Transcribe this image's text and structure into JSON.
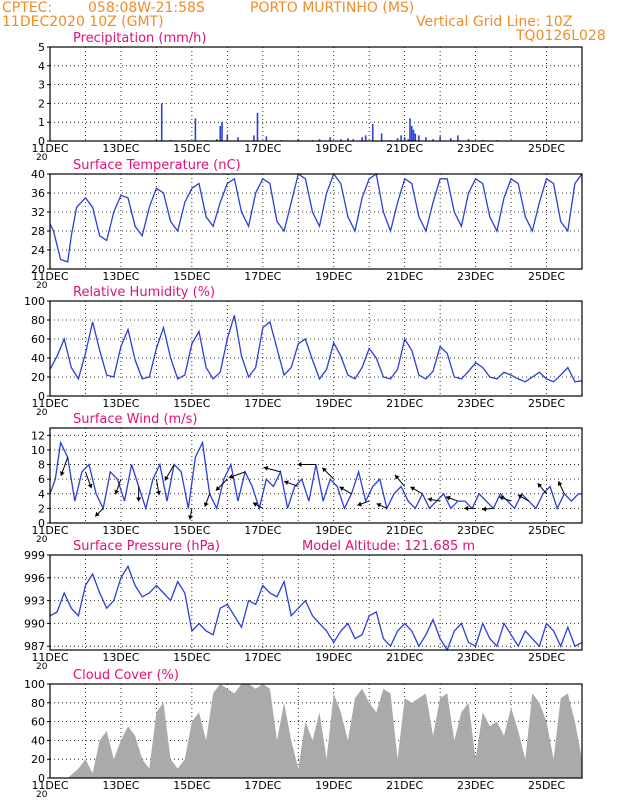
{
  "header": {
    "line1_left": "CPTEC:",
    "line1_coords": "058:08W-21:58S",
    "line1_station": "PORTO MURTINHO (MS)",
    "line2_left": "11DEC2020 10Z (GMT)",
    "line2_right": "Vertical Grid Line: 10Z",
    "line3_right": "TQ0126L028"
  },
  "colors": {
    "header": "#f08c28",
    "panel_title": "#e0107a",
    "line": "#2b3fd9",
    "cloud": "#aaaaaa",
    "wind_arrow": "#000000"
  },
  "x_axis": {
    "tick_labels": [
      "11DEC",
      "13DEC",
      "15DEC",
      "17DEC",
      "19DEC",
      "21DEC",
      "23DEC",
      "25DEC"
    ],
    "start_day": 11,
    "end_day": 26,
    "cut_label": "20"
  },
  "chart_data": [
    {
      "id": "precip",
      "type": "bar",
      "title": "Precipitation (mm/h)",
      "ylim": [
        0,
        5
      ],
      "yticks": [
        0,
        1,
        2,
        3,
        4,
        5
      ],
      "x": [
        12.2,
        12.6,
        13.0,
        13.3,
        13.8,
        14.0,
        14.15,
        14.4,
        14.9,
        15.1,
        15.4,
        15.7,
        15.8,
        15.85,
        16.0,
        16.3,
        16.75,
        16.85,
        17.1,
        17.5,
        18.0,
        18.4,
        18.6,
        18.9,
        19.2,
        19.4,
        19.55,
        19.8,
        19.9,
        20.1,
        20.35,
        20.6,
        20.8,
        20.9,
        21.0,
        21.1,
        21.15,
        21.2,
        21.25,
        21.3,
        21.4,
        21.6,
        21.8,
        22.0,
        22.3,
        22.5,
        22.8,
        23.2,
        23.6,
        24.0,
        24.6,
        25.2,
        25.6
      ],
      "values": [
        0.02,
        0.03,
        0.02,
        0.04,
        0.03,
        0.05,
        2.0,
        0.06,
        0.05,
        1.2,
        0.05,
        0.1,
        0.8,
        1.0,
        0.35,
        0.2,
        0.3,
        1.5,
        0.25,
        0.05,
        0.1,
        0.05,
        0.1,
        0.2,
        0.1,
        0.15,
        0.1,
        0.2,
        0.3,
        0.9,
        0.4,
        0.05,
        0.15,
        0.3,
        0.2,
        0.1,
        1.2,
        0.8,
        0.6,
        0.4,
        0.3,
        0.2,
        0.1,
        0.25,
        0.15,
        0.3,
        0.1,
        0.05,
        0.05,
        0.03,
        0.02,
        0.02,
        0.02
      ]
    },
    {
      "id": "temp",
      "type": "line",
      "title": "Surface Temperature (nC)",
      "ylim": [
        20,
        40
      ],
      "yticks": [
        20,
        24,
        28,
        32,
        36,
        40
      ],
      "x": [
        11.0,
        11.1,
        11.3,
        11.5,
        11.6,
        11.75,
        12.0,
        12.2,
        12.4,
        12.6,
        12.8,
        13.0,
        13.2,
        13.4,
        13.6,
        13.8,
        14.0,
        14.2,
        14.4,
        14.6,
        14.8,
        15.0,
        15.2,
        15.4,
        15.6,
        15.8,
        16.0,
        16.2,
        16.4,
        16.6,
        16.8,
        17.0,
        17.2,
        17.4,
        17.6,
        17.8,
        18.0,
        18.2,
        18.4,
        18.6,
        18.8,
        19.0,
        19.2,
        19.4,
        19.6,
        19.8,
        20.0,
        20.2,
        20.4,
        20.6,
        20.8,
        21.0,
        21.2,
        21.4,
        21.6,
        21.8,
        22.0,
        22.2,
        22.4,
        22.6,
        22.8,
        23.0,
        23.2,
        23.4,
        23.6,
        23.8,
        24.0,
        24.2,
        24.4,
        24.6,
        24.8,
        25.0,
        25.2,
        25.4,
        25.6,
        25.8,
        26.0
      ],
      "values": [
        29.5,
        28,
        22,
        21.5,
        27,
        33,
        35,
        33,
        27,
        26,
        32,
        35.5,
        35,
        29,
        27,
        33,
        37,
        36,
        30,
        28,
        34,
        37,
        38,
        31,
        29,
        34,
        38,
        39,
        32,
        29,
        36,
        39,
        38,
        30,
        28,
        34,
        40,
        39,
        32,
        29,
        36,
        40,
        38,
        31,
        28,
        35,
        39,
        40,
        32,
        28,
        34,
        39,
        38,
        31,
        28,
        34,
        39,
        39,
        32,
        29,
        36,
        39,
        38,
        31,
        28,
        35,
        39,
        38,
        31,
        28,
        34,
        39,
        38,
        30,
        28,
        38,
        40
      ]
    },
    {
      "id": "rh",
      "type": "line",
      "title": "Relative Humidity (%)",
      "ylim": [
        0,
        100
      ],
      "yticks": [
        0,
        20,
        40,
        60,
        80,
        100
      ],
      "x": [
        11.0,
        11.2,
        11.4,
        11.6,
        11.8,
        12.0,
        12.2,
        12.4,
        12.6,
        12.8,
        13.0,
        13.2,
        13.4,
        13.6,
        13.8,
        14.0,
        14.2,
        14.4,
        14.6,
        14.8,
        15.0,
        15.2,
        15.4,
        15.6,
        15.8,
        16.0,
        16.2,
        16.4,
        16.6,
        16.8,
        17.0,
        17.2,
        17.4,
        17.6,
        17.8,
        18.0,
        18.2,
        18.4,
        18.6,
        18.8,
        19.0,
        19.2,
        19.4,
        19.6,
        19.8,
        20.0,
        20.2,
        20.4,
        20.6,
        20.8,
        21.0,
        21.2,
        21.4,
        21.6,
        21.8,
        22.0,
        22.2,
        22.4,
        22.6,
        22.8,
        23.0,
        23.2,
        23.4,
        23.6,
        23.8,
        24.0,
        24.2,
        24.4,
        24.6,
        24.8,
        25.0,
        25.2,
        25.4,
        25.6,
        25.8,
        26.0
      ],
      "values": [
        28,
        42,
        60,
        30,
        18,
        45,
        78,
        48,
        22,
        20,
        52,
        70,
        38,
        18,
        20,
        50,
        72,
        40,
        18,
        22,
        55,
        68,
        30,
        18,
        25,
        60,
        85,
        42,
        20,
        30,
        72,
        78,
        50,
        22,
        30,
        55,
        60,
        38,
        18,
        28,
        56,
        42,
        22,
        18,
        30,
        50,
        40,
        20,
        18,
        28,
        60,
        48,
        22,
        18,
        26,
        52,
        45,
        20,
        18,
        26,
        35,
        30,
        20,
        18,
        25,
        22,
        18,
        15,
        20,
        25,
        18,
        15,
        22,
        30,
        15,
        16
      ]
    },
    {
      "id": "wind",
      "type": "line",
      "title": "Surface Wind (m/s)",
      "ylim": [
        0,
        13
      ],
      "yticks": [
        0,
        2,
        4,
        6,
        8,
        10,
        12
      ],
      "x": [
        11.0,
        11.15,
        11.3,
        11.5,
        11.7,
        11.9,
        12.1,
        12.3,
        12.5,
        12.7,
        12.9,
        13.1,
        13.3,
        13.5,
        13.7,
        13.9,
        14.1,
        14.3,
        14.5,
        14.7,
        14.9,
        15.1,
        15.3,
        15.5,
        15.7,
        15.9,
        16.1,
        16.3,
        16.5,
        16.7,
        16.9,
        17.1,
        17.3,
        17.5,
        17.7,
        17.9,
        18.1,
        18.3,
        18.5,
        18.7,
        18.9,
        19.1,
        19.3,
        19.5,
        19.7,
        19.9,
        20.1,
        20.3,
        20.5,
        20.7,
        20.9,
        21.1,
        21.3,
        21.5,
        21.7,
        21.9,
        22.1,
        22.3,
        22.5,
        22.7,
        22.9,
        23.1,
        23.3,
        23.5,
        23.7,
        23.9,
        24.1,
        24.3,
        24.5,
        24.7,
        24.9,
        25.1,
        25.3,
        25.5,
        25.7,
        25.9,
        26.0
      ],
      "values": [
        4,
        6,
        11,
        9,
        3,
        7,
        8,
        4,
        2,
        7,
        6,
        3,
        8,
        5,
        2,
        6,
        8,
        3,
        8,
        7,
        2,
        9,
        11,
        4,
        2,
        6,
        8,
        3,
        7,
        5,
        2,
        6,
        5,
        7,
        2,
        5,
        6,
        3,
        8,
        3,
        6,
        5,
        2,
        4,
        7,
        3,
        5,
        6,
        2,
        4,
        5,
        3,
        2,
        4,
        2,
        3,
        4,
        2,
        3,
        3,
        2,
        4,
        3,
        2,
        4,
        3,
        2,
        4,
        3,
        2,
        4,
        5,
        2,
        4,
        3,
        4,
        4
      ],
      "arrows_x": [
        11.5,
        12.0,
        12.5,
        13.0,
        13.5,
        14.0,
        14.5,
        15.0,
        15.5,
        16.0,
        16.5,
        17.0,
        17.5,
        18.0,
        18.5,
        19.0,
        19.5,
        20.0,
        20.5,
        21.0,
        21.5,
        22.0,
        22.5,
        23.0,
        23.5,
        24.0,
        24.5,
        25.0,
        25.5
      ],
      "arrows_deg": [
        200,
        160,
        225,
        200,
        180,
        170,
        210,
        190,
        200,
        225,
        250,
        300,
        285,
        290,
        270,
        315,
        300,
        250,
        295,
        320,
        300,
        280,
        290,
        270,
        265,
        290,
        300,
        320,
        335
      ]
    },
    {
      "id": "press",
      "type": "line",
      "title": "Surface Pressure (hPa)",
      "extra_label": "Model Altitude: 121.685 m",
      "ylim": [
        986.5,
        999
      ],
      "yticks": [
        987,
        990,
        993,
        996,
        999
      ],
      "x": [
        11.0,
        11.2,
        11.4,
        11.6,
        11.8,
        12.0,
        12.2,
        12.4,
        12.6,
        12.8,
        13.0,
        13.2,
        13.4,
        13.6,
        13.8,
        14.0,
        14.2,
        14.4,
        14.6,
        14.8,
        15.0,
        15.2,
        15.4,
        15.6,
        15.8,
        16.0,
        16.2,
        16.4,
        16.6,
        16.8,
        17.0,
        17.2,
        17.4,
        17.6,
        17.8,
        18.0,
        18.2,
        18.4,
        18.6,
        18.8,
        19.0,
        19.2,
        19.4,
        19.6,
        19.8,
        20.0,
        20.2,
        20.4,
        20.6,
        20.8,
        21.0,
        21.2,
        21.4,
        21.6,
        21.8,
        22.0,
        22.2,
        22.4,
        22.6,
        22.8,
        23.0,
        23.2,
        23.4,
        23.6,
        23.8,
        24.0,
        24.2,
        24.4,
        24.6,
        24.8,
        25.0,
        25.2,
        25.4,
        25.6,
        25.8,
        26.0
      ],
      "values": [
        991,
        991.5,
        994,
        992,
        991,
        995,
        996.5,
        994,
        992,
        993,
        996,
        997.5,
        995,
        993.5,
        994,
        995,
        994,
        993,
        995.5,
        994,
        989,
        990,
        989,
        988.5,
        992,
        992.5,
        991,
        989.5,
        993,
        992.5,
        995,
        994,
        993.5,
        995.5,
        991,
        992,
        993,
        991,
        990,
        989,
        987.5,
        989,
        990,
        988,
        988.5,
        991,
        991.5,
        988,
        987,
        989,
        990,
        989,
        987,
        988.5,
        990.5,
        988,
        986,
        989,
        990,
        987.5,
        987,
        990,
        988,
        987,
        990,
        988.5,
        987,
        989,
        988,
        987,
        990,
        989,
        987,
        989.5,
        987,
        987.5
      ]
    },
    {
      "id": "cloud",
      "type": "area",
      "title": "Cloud Cover (%)",
      "ylim": [
        0,
        100
      ],
      "yticks": [
        0,
        20,
        40,
        60,
        80,
        100
      ],
      "x": [
        11.0,
        11.5,
        11.8,
        12.0,
        12.2,
        12.4,
        12.6,
        12.8,
        13.0,
        13.2,
        13.4,
        13.6,
        13.8,
        14.0,
        14.2,
        14.4,
        14.6,
        14.8,
        15.0,
        15.2,
        15.4,
        15.6,
        15.8,
        16.0,
        16.2,
        16.4,
        16.6,
        16.8,
        17.0,
        17.2,
        17.4,
        17.6,
        17.8,
        18.0,
        18.2,
        18.4,
        18.6,
        18.8,
        19.0,
        19.2,
        19.4,
        19.6,
        19.8,
        20.0,
        20.2,
        20.4,
        20.6,
        20.8,
        21.0,
        21.2,
        21.4,
        21.6,
        21.8,
        22.0,
        22.2,
        22.4,
        22.6,
        22.8,
        23.0,
        23.2,
        23.4,
        23.6,
        23.8,
        24.0,
        24.2,
        24.4,
        24.6,
        24.8,
        25.0,
        25.2,
        25.4,
        25.6,
        25.8,
        26.0
      ],
      "values": [
        0,
        0,
        10,
        20,
        5,
        40,
        50,
        20,
        40,
        55,
        45,
        20,
        10,
        70,
        80,
        20,
        10,
        20,
        60,
        70,
        40,
        90,
        100,
        95,
        90,
        100,
        100,
        95,
        100,
        95,
        40,
        80,
        40,
        10,
        60,
        40,
        70,
        20,
        90,
        70,
        40,
        85,
        95,
        80,
        70,
        95,
        90,
        20,
        85,
        80,
        85,
        90,
        45,
        85,
        90,
        40,
        70,
        80,
        20,
        70,
        55,
        60,
        45,
        75,
        50,
        20,
        90,
        80,
        60,
        20,
        85,
        90,
        60,
        20
      ]
    }
  ]
}
